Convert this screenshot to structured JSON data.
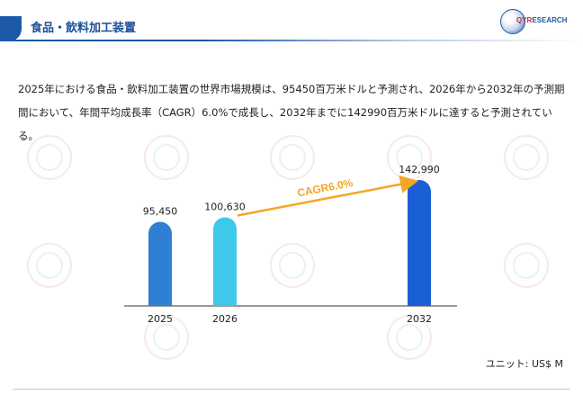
{
  "header": {
    "title": "食品・飲料加工装置",
    "logo_text_main": "QYR",
    "logo_text_sub": "ESEARCH",
    "accent": "#1c5aa8"
  },
  "description": "2025年における食品・飲料加工装置の世界市場規模は、95450百万米ドルと予測され、2026年から2032年の予測期間において、年間平均成長率（CAGR）6.0%で成長し、2032年までに142990百万米ドルに達すると予測されている。",
  "unit_label": "ユニット: US$ M",
  "chart_data": {
    "type": "bar",
    "categories": [
      "2025",
      "2026",
      "2032"
    ],
    "values": [
      95450,
      100630,
      142990
    ],
    "value_labels": [
      "95,450",
      "100,630",
      "142,990"
    ],
    "colors": [
      "#2f7fd4",
      "#3ec8ea",
      "#1a5fd6"
    ],
    "annotation": {
      "text": "CAGR6.0%",
      "from": "2026",
      "to": "2032",
      "color": "#f5a623"
    },
    "ylim": [
      0,
      160000
    ],
    "grid": false,
    "legend": "none"
  }
}
